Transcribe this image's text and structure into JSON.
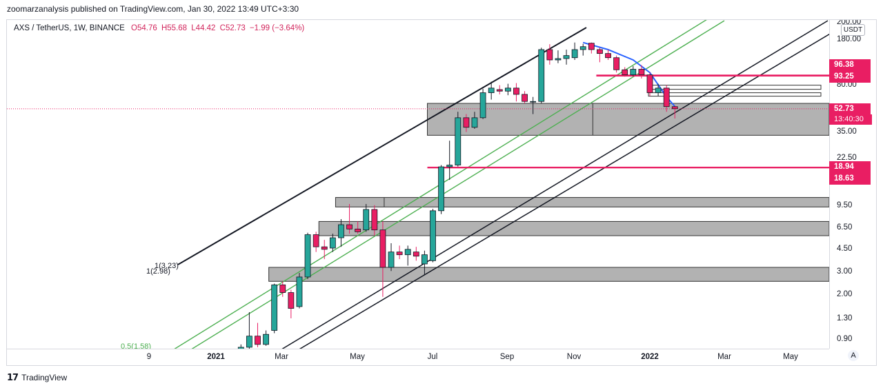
{
  "header": {
    "published": "zoomarzanalysis published on TradingView.com, Jan 30, 2022 13:49 UTC+3:30"
  },
  "legend": {
    "symbol": "AXS / TetherUS, 1W, BINANCE",
    "open": "O54.76",
    "high": "H55.68",
    "low": "L44.42",
    "close": "C52.73",
    "change": "−1.99 (−3.64%)"
  },
  "yaxis": {
    "currency": "USDT",
    "ticks": [
      "200.00",
      "180.00",
      "80.00",
      "35.00",
      "22.50",
      "9.50",
      "6.50",
      "4.50",
      "3.00",
      "2.00",
      "1.30",
      "0.90"
    ]
  },
  "xaxis": {
    "ticks": [
      "9",
      "2021",
      "Mar",
      "May",
      "Jul",
      "Sep",
      "Nov",
      "2022",
      "Mar",
      "May"
    ]
  },
  "price_labels": {
    "level_high": "96.38",
    "level_low": "93.25",
    "last": "52.73",
    "timer": "13:40:30",
    "support_high": "18.94",
    "support_low": "18.63"
  },
  "annotations": {
    "fib_a": "1(3.23)",
    "fib_b": "1(2.98)",
    "fib_half": "0.5(1.58)"
  },
  "footer": {
    "brand": "TradingView"
  },
  "chart_data": {
    "type": "candlestick",
    "title": "AXS / TetherUS, 1W, BINANCE",
    "y_scale": "log",
    "ylim": [
      0.75,
      210
    ],
    "ohlc": [
      {
        "x": "2020-12-21",
        "o": 0.6,
        "h": 0.66,
        "l": 0.56,
        "c": 0.62
      },
      {
        "x": "2020-12-28",
        "o": 0.62,
        "h": 0.66,
        "l": 0.56,
        "c": 0.58
      },
      {
        "x": "2021-01-04",
        "o": 0.58,
        "h": 0.64,
        "l": 0.54,
        "c": 0.6
      },
      {
        "x": "2021-01-11",
        "o": 0.6,
        "h": 0.72,
        "l": 0.56,
        "c": 0.62
      },
      {
        "x": "2021-01-18",
        "o": 0.62,
        "h": 0.7,
        "l": 0.58,
        "c": 0.64
      },
      {
        "x": "2021-01-25",
        "o": 0.64,
        "h": 0.82,
        "l": 0.62,
        "c": 0.78
      },
      {
        "x": "2021-02-01",
        "o": 0.78,
        "h": 1.45,
        "l": 0.76,
        "c": 0.95
      },
      {
        "x": "2021-02-08",
        "o": 0.95,
        "h": 1.2,
        "l": 0.78,
        "c": 0.82
      },
      {
        "x": "2021-02-15",
        "o": 0.82,
        "h": 1.05,
        "l": 0.8,
        "c": 0.98
      },
      {
        "x": "2021-02-22",
        "o": 1.05,
        "h": 2.4,
        "l": 1.0,
        "c": 2.35
      },
      {
        "x": "2021-03-01",
        "o": 2.35,
        "h": 2.5,
        "l": 1.9,
        "c": 2.05
      },
      {
        "x": "2021-03-08",
        "o": 2.05,
        "h": 2.15,
        "l": 1.3,
        "c": 1.55
      },
      {
        "x": "2021-03-15",
        "o": 1.6,
        "h": 2.9,
        "l": 1.55,
        "c": 2.7
      },
      {
        "x": "2021-03-22",
        "o": 2.7,
        "h": 5.9,
        "l": 2.6,
        "c": 5.7
      },
      {
        "x": "2021-03-29",
        "o": 5.7,
        "h": 6.0,
        "l": 4.2,
        "c": 4.6
      },
      {
        "x": "2021-04-05",
        "o": 4.6,
        "h": 5.2,
        "l": 3.7,
        "c": 4.4
      },
      {
        "x": "2021-04-12",
        "o": 4.5,
        "h": 5.8,
        "l": 4.2,
        "c": 5.4
      },
      {
        "x": "2021-04-19",
        "o": 5.4,
        "h": 7.5,
        "l": 4.6,
        "c": 6.8
      },
      {
        "x": "2021-04-26",
        "o": 6.8,
        "h": 9.8,
        "l": 5.8,
        "c": 6.3
      },
      {
        "x": "2021-05-03",
        "o": 6.3,
        "h": 7.2,
        "l": 5.8,
        "c": 6.0
      },
      {
        "x": "2021-05-10",
        "o": 6.2,
        "h": 9.8,
        "l": 6.0,
        "c": 8.9
      },
      {
        "x": "2021-05-17",
        "o": 8.9,
        "h": 9.6,
        "l": 5.6,
        "c": 6.2
      },
      {
        "x": "2021-05-24",
        "o": 6.2,
        "h": 7.2,
        "l": 1.9,
        "c": 3.2
      },
      {
        "x": "2021-05-31",
        "o": 3.2,
        "h": 4.9,
        "l": 3.0,
        "c": 4.2
      },
      {
        "x": "2021-06-07",
        "o": 4.2,
        "h": 4.7,
        "l": 3.7,
        "c": 4.0
      },
      {
        "x": "2021-06-14",
        "o": 4.0,
        "h": 4.7,
        "l": 3.3,
        "c": 4.4
      },
      {
        "x": "2021-06-21",
        "o": 4.2,
        "h": 4.6,
        "l": 3.6,
        "c": 3.9
      },
      {
        "x": "2021-06-28",
        "o": 3.4,
        "h": 4.3,
        "l": 2.8,
        "c": 4.0
      },
      {
        "x": "2021-07-05",
        "o": 3.6,
        "h": 9.0,
        "l": 3.5,
        "c": 8.7
      },
      {
        "x": "2021-07-12",
        "o": 8.7,
        "h": 19.5,
        "l": 8.2,
        "c": 18.9
      },
      {
        "x": "2021-07-19",
        "o": 18.9,
        "h": 30.0,
        "l": 15.0,
        "c": 19.5
      },
      {
        "x": "2021-07-26",
        "o": 19.5,
        "h": 50.0,
        "l": 19.0,
        "c": 45.0
      },
      {
        "x": "2021-08-02",
        "o": 45.0,
        "h": 48.0,
        "l": 35.0,
        "c": 38.0
      },
      {
        "x": "2021-08-09",
        "o": 38.0,
        "h": 50.0,
        "l": 37.0,
        "c": 45.0
      },
      {
        "x": "2021-08-16",
        "o": 45.0,
        "h": 75.0,
        "l": 44.0,
        "c": 70.0
      },
      {
        "x": "2021-08-23",
        "o": 70.0,
        "h": 85.0,
        "l": 62.0,
        "c": 76.0
      },
      {
        "x": "2021-08-30",
        "o": 74.0,
        "h": 80.0,
        "l": 68.0,
        "c": 72.0
      },
      {
        "x": "2021-09-06",
        "o": 72.0,
        "h": 82.0,
        "l": 67.0,
        "c": 76.0
      },
      {
        "x": "2021-09-13",
        "o": 76.0,
        "h": 83.0,
        "l": 60.0,
        "c": 68.0
      },
      {
        "x": "2021-09-20",
        "o": 68.0,
        "h": 72.0,
        "l": 58.0,
        "c": 60.0
      },
      {
        "x": "2021-09-27",
        "o": 60.0,
        "h": 65.0,
        "l": 48.0,
        "c": 60.0
      },
      {
        "x": "2021-10-04",
        "o": 60.0,
        "h": 155.0,
        "l": 58.0,
        "c": 150.0
      },
      {
        "x": "2021-10-11",
        "o": 150.0,
        "h": 165.0,
        "l": 115.0,
        "c": 125.0
      },
      {
        "x": "2021-10-18",
        "o": 125.0,
        "h": 148.0,
        "l": 118.0,
        "c": 128.0
      },
      {
        "x": "2021-10-25",
        "o": 128.0,
        "h": 150.0,
        "l": 115.0,
        "c": 135.0
      },
      {
        "x": "2021-11-01",
        "o": 130.0,
        "h": 170.0,
        "l": 125.0,
        "c": 150.0
      },
      {
        "x": "2021-11-08",
        "o": 150.0,
        "h": 166.0,
        "l": 135.0,
        "c": 158.0
      },
      {
        "x": "2021-11-15",
        "o": 168.0,
        "h": 170.0,
        "l": 140.0,
        "c": 150.0
      },
      {
        "x": "2021-11-22",
        "o": 150.0,
        "h": 155.0,
        "l": 120.0,
        "c": 140.0
      },
      {
        "x": "2021-11-29",
        "o": 140.0,
        "h": 150.0,
        "l": 125.0,
        "c": 130.0
      },
      {
        "x": "2021-12-06",
        "o": 130.0,
        "h": 135.0,
        "l": 100.0,
        "c": 105.0
      },
      {
        "x": "2021-12-13",
        "o": 105.0,
        "h": 110.0,
        "l": 93.0,
        "c": 96.0
      },
      {
        "x": "2021-12-20",
        "o": 96.0,
        "h": 112.0,
        "l": 94.0,
        "c": 106.0
      },
      {
        "x": "2021-12-27",
        "o": 106.0,
        "h": 114.0,
        "l": 90.0,
        "c": 96.0
      },
      {
        "x": "2022-01-03",
        "o": 96.0,
        "h": 100.0,
        "l": 66.0,
        "c": 70.0
      },
      {
        "x": "2022-01-10",
        "o": 70.0,
        "h": 82.0,
        "l": 66.0,
        "c": 76.0
      },
      {
        "x": "2022-01-17",
        "o": 76.0,
        "h": 80.0,
        "l": 50.0,
        "c": 54.76
      },
      {
        "x": "2022-01-24",
        "o": 54.76,
        "h": 55.68,
        "l": 44.42,
        "c": 52.73
      }
    ],
    "horizontal_levels": [
      96.38,
      93.25,
      52.73,
      18.94,
      18.63
    ],
    "zones": [
      {
        "from": 33.0,
        "to": 58.0
      },
      {
        "from": 9.3,
        "to": 11.0
      },
      {
        "from": 5.6,
        "to": 7.2
      },
      {
        "from": 2.5,
        "to": 3.2
      }
    ]
  }
}
